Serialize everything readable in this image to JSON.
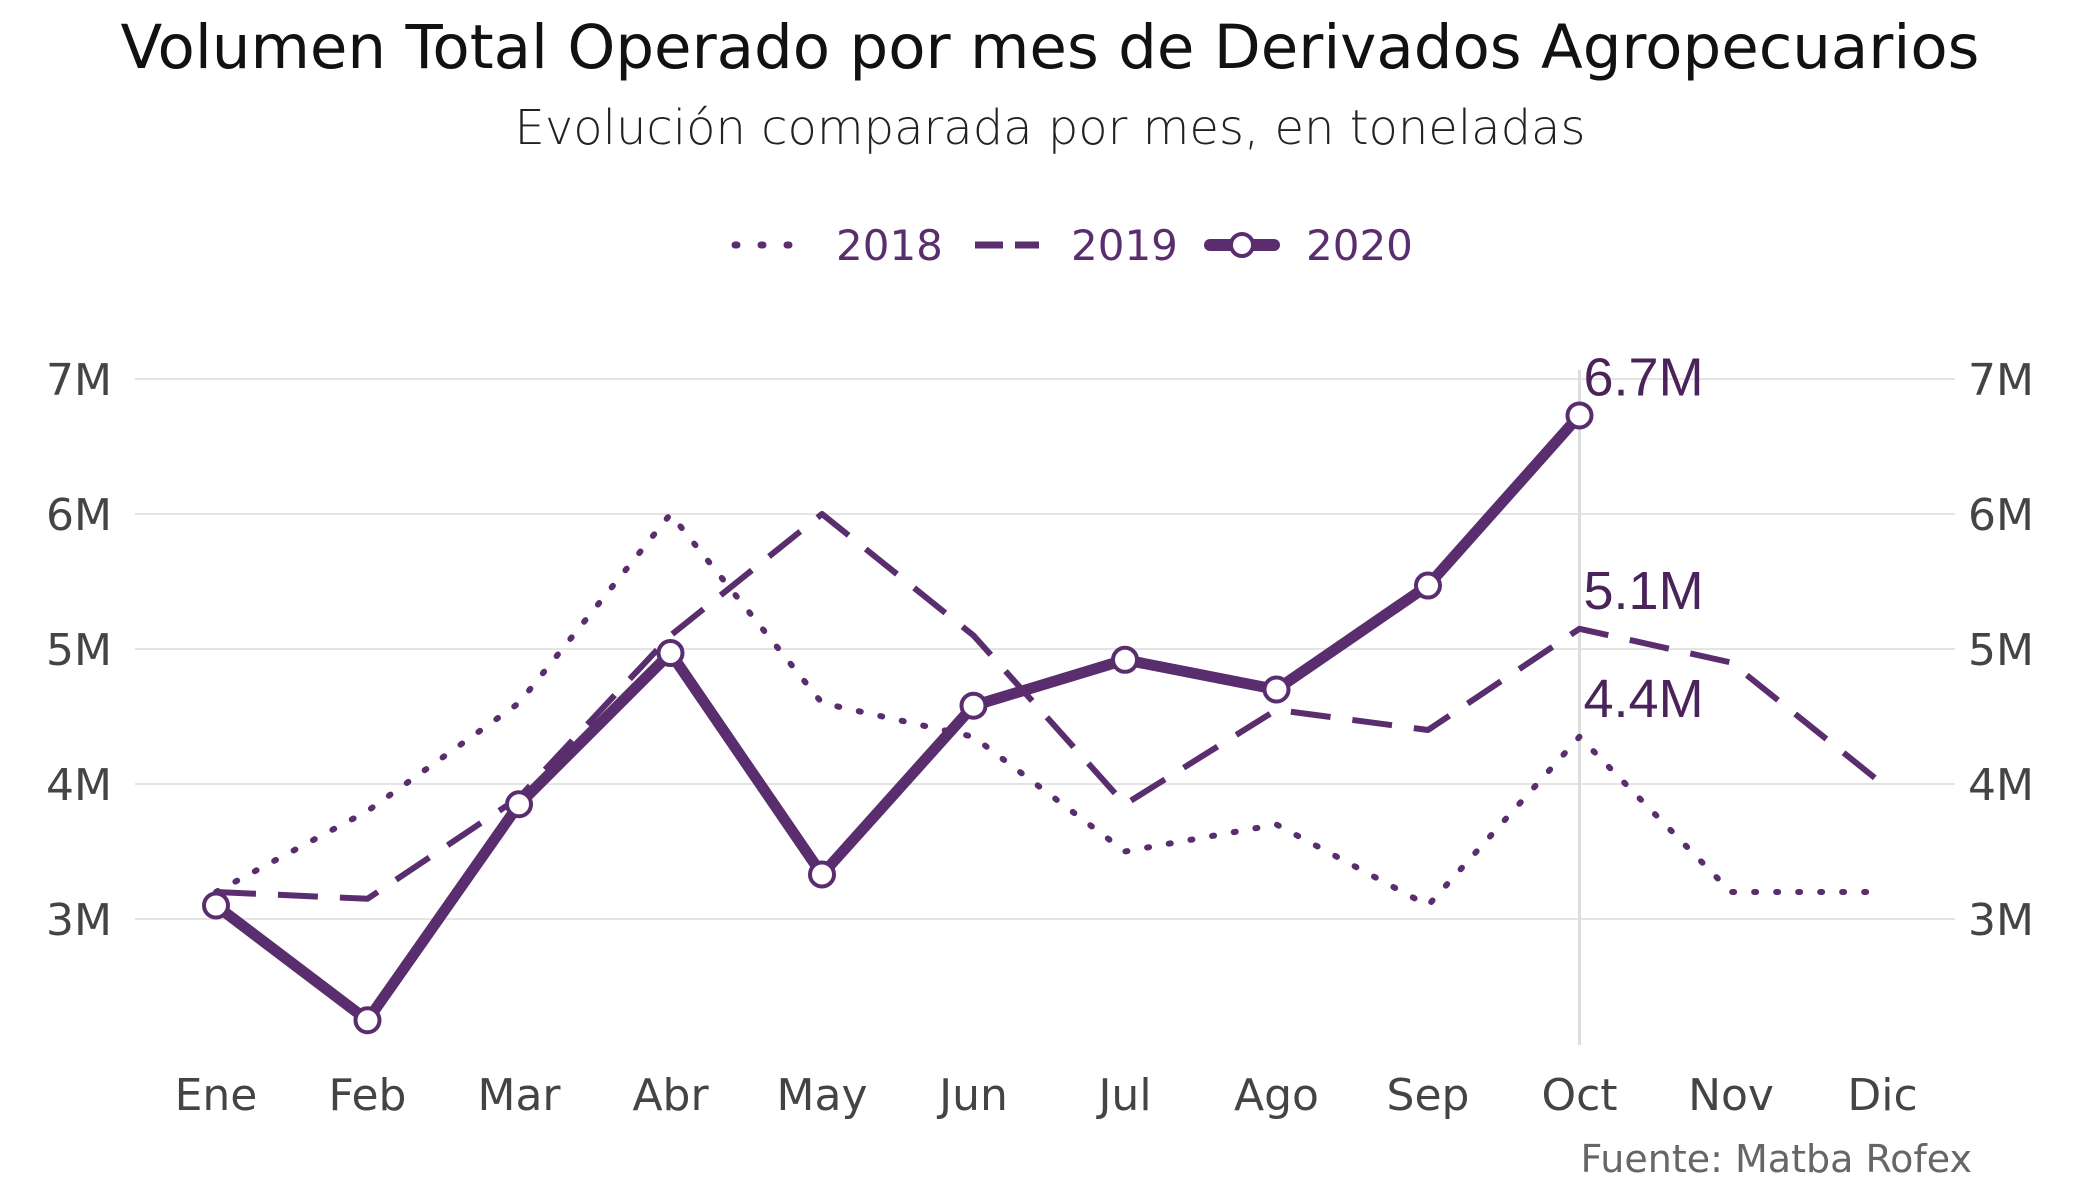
{
  "title": "Volumen Total Operado por mes de Derivados Agropecuarios",
  "subtitle": "Evolución comparada por mes, en toneladas",
  "source": "Fuente: Matba Rofex",
  "colors": {
    "series": "#5a2d6e",
    "grid": "#e4e4e4",
    "highlight_line": "#dddddd"
  },
  "chart_data": {
    "type": "line",
    "categories": [
      "Ene",
      "Feb",
      "Mar",
      "Abr",
      "May",
      "Jun",
      "Jul",
      "Ago",
      "Sep",
      "Oct",
      "Nov",
      "Dic"
    ],
    "y_ticks": [
      3,
      4,
      5,
      6,
      7
    ],
    "y_tick_labels": [
      "3M",
      "4M",
      "5M",
      "6M",
      "7M"
    ],
    "ylim": [
      2.0,
      7.3
    ],
    "y_unit": "millones de toneladas",
    "grid": true,
    "legend_position": "top-center",
    "highlight_category": "Oct",
    "series": [
      {
        "name": "2018",
        "style": "dotted",
        "values": [
          3.2,
          3.8,
          4.6,
          6.0,
          4.6,
          4.35,
          3.5,
          3.7,
          3.1,
          4.35,
          3.2,
          3.2
        ]
      },
      {
        "name": "2019",
        "style": "dashed",
        "values": [
          3.2,
          3.15,
          3.9,
          5.1,
          6.0,
          5.1,
          3.85,
          4.55,
          4.4,
          5.15,
          4.9,
          4.0
        ]
      },
      {
        "name": "2020",
        "style": "solid-markers",
        "values": [
          3.1,
          2.25,
          3.85,
          4.97,
          3.33,
          4.58,
          4.92,
          4.7,
          5.47,
          6.73,
          null,
          null
        ]
      }
    ],
    "annotations": [
      {
        "category": "Oct",
        "series": "2020",
        "value": 6.73,
        "label": "6.7M"
      },
      {
        "category": "Oct",
        "series": "2019",
        "value": 5.15,
        "label": "5.1M"
      },
      {
        "category": "Oct",
        "series": "2018",
        "value": 4.35,
        "label": "4.4M"
      }
    ]
  }
}
